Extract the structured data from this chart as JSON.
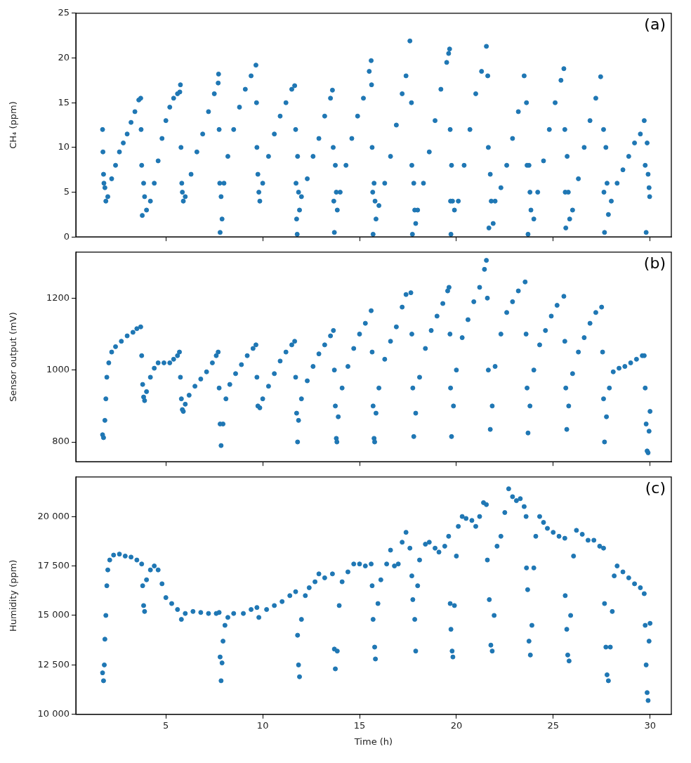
{
  "chart_data": [
    {
      "type": "scatter",
      "ylabel": "CH₄ (ppm)",
      "annotations": [
        "(a)"
      ],
      "marker": "circle",
      "legend": false,
      "tick_labels": "y",
      "xlim": [
        0.35,
        31.1
      ],
      "xticks": [
        5,
        10,
        15,
        20,
        25,
        30
      ],
      "ylim": [
        0,
        25
      ],
      "yticks": [
        0,
        5,
        10,
        15,
        20,
        25
      ],
      "series": [
        {
          "color": "#1f77b4",
          "x": [
            1.73,
            1.75,
            1.78,
            1.8,
            1.85,
            1.9,
            2.0,
            2.2,
            2.4,
            2.6,
            2.8,
            3.0,
            3.2,
            3.4,
            3.6,
            3.7,
            3.72,
            3.75,
            3.78
          ],
          "values": [
            12,
            9.5,
            7,
            6,
            5.5,
            4,
            4.5,
            6.5,
            8,
            9.5,
            10.5,
            11.5,
            12.8,
            14,
            15.3,
            15.5,
            12,
            8,
            2.4
          ]
        },
        {
          "color": "#1f77b4",
          "x": [
            3.85,
            3.9,
            4.0,
            4.2,
            4.4,
            4.6,
            4.8,
            5.0,
            5.2,
            5.4,
            5.6,
            5.72,
            5.75,
            5.78,
            5.82
          ],
          "values": [
            6,
            4.5,
            3,
            4,
            6,
            8.5,
            11,
            13,
            14.5,
            15.5,
            16,
            16.2,
            17,
            10,
            6
          ]
        },
        {
          "color": "#1f77b4",
          "x": [
            5.85,
            5.9,
            6.0,
            6.3,
            6.6,
            6.9,
            7.2,
            7.5,
            7.7,
            7.72,
            7.75,
            7.78,
            7.8
          ],
          "values": [
            5,
            4,
            4.5,
            7,
            9.5,
            11.5,
            14,
            16,
            17.2,
            18.2,
            12,
            6,
            0.5
          ]
        },
        {
          "color": "#1f77b4",
          "x": [
            7.85,
            7.9,
            8.0,
            8.2,
            8.5,
            8.8,
            9.1,
            9.4,
            9.65,
            9.68,
            9.7,
            9.75
          ],
          "values": [
            4.5,
            2,
            6,
            9,
            12,
            14.5,
            16.5,
            18,
            19.2,
            15,
            10,
            7
          ]
        },
        {
          "color": "#1f77b4",
          "x": [
            9.8,
            9.85,
            10.0,
            10.3,
            10.6,
            10.9,
            11.2,
            11.5,
            11.65,
            11.7,
            11.72,
            11.75,
            11.78
          ],
          "values": [
            5,
            4,
            6,
            9,
            11.5,
            13.5,
            15,
            16.5,
            16.9,
            12,
            6,
            2,
            0.3
          ]
        },
        {
          "color": "#1f77b4",
          "x": [
            11.8,
            11.85,
            11.9,
            12.0,
            12.3,
            12.6,
            12.9,
            13.2,
            13.5,
            13.6,
            13.64,
            13.67,
            13.7
          ],
          "values": [
            9,
            5,
            3,
            4.5,
            6.5,
            9,
            11,
            13.5,
            15.5,
            16.4,
            10,
            4,
            0.5
          ]
        },
        {
          "color": "#1f77b4",
          "x": [
            13.75,
            13.8,
            13.85,
            14.0,
            14.3,
            14.6,
            14.9,
            15.2,
            15.5,
            15.6,
            15.62,
            15.65,
            15.68,
            15.7
          ],
          "values": [
            8,
            5,
            3,
            5,
            8,
            11,
            13.5,
            15.5,
            18.5,
            19.7,
            17,
            10,
            5,
            0.3
          ]
        },
        {
          "color": "#1f77b4",
          "x": [
            15.75,
            15.8,
            15.85,
            16.0,
            16.3,
            16.6,
            16.9,
            17.2,
            17.4,
            17.6,
            17.68,
            17.7,
            17.73
          ],
          "values": [
            6,
            4,
            2,
            3.5,
            6,
            9,
            12.5,
            16,
            18,
            21.9,
            15,
            8,
            0.3
          ]
        },
        {
          "color": "#1f77b4",
          "x": [
            17.8,
            17.85,
            17.9,
            18.0,
            18.3,
            18.6,
            18.9,
            19.2,
            19.5,
            19.6,
            19.65,
            19.68,
            19.7,
            19.72
          ],
          "values": [
            6,
            3,
            1.5,
            3,
            6,
            9.5,
            13,
            16.5,
            19.5,
            20.5,
            21,
            12,
            4,
            0.3
          ]
        },
        {
          "color": "#1f77b4",
          "x": [
            19.75,
            19.8,
            19.9,
            20.1,
            20.4,
            20.7,
            21.0,
            21.3,
            21.55,
            21.62,
            21.65,
            21.68
          ],
          "values": [
            8,
            4,
            3,
            4,
            8,
            12,
            16,
            18.5,
            21.3,
            18,
            10,
            1
          ]
        },
        {
          "color": "#1f77b4",
          "x": [
            21.75,
            21.8,
            21.9,
            22.0,
            22.3,
            22.6,
            22.9,
            23.2,
            23.5,
            23.62,
            23.65,
            23.7
          ],
          "values": [
            7,
            4,
            1.5,
            4,
            5.5,
            8,
            11,
            14,
            18,
            15,
            8,
            0.3
          ]
        },
        {
          "color": "#1f77b4",
          "x": [
            23.75,
            23.8,
            23.85,
            24.0,
            24.2,
            24.5,
            24.8,
            25.1,
            25.4,
            25.55,
            25.6,
            25.62,
            25.65
          ],
          "values": [
            8,
            5,
            3,
            2,
            5,
            8.5,
            12,
            15,
            17.5,
            18.8,
            12,
            5,
            1
          ]
        },
        {
          "color": "#1f77b4",
          "x": [
            25.72,
            25.78,
            25.85,
            26.0,
            26.3,
            26.6,
            26.9,
            27.2,
            27.45,
            27.6,
            27.62,
            27.65
          ],
          "values": [
            9,
            5,
            2,
            3,
            6.5,
            10,
            13,
            15.5,
            17.9,
            12,
            5,
            0.5
          ]
        },
        {
          "color": "#1f77b4",
          "x": [
            27.72,
            27.78,
            27.85,
            28.0,
            28.3,
            28.6,
            28.9,
            29.2,
            29.5,
            29.7,
            29.75,
            29.8,
            29.85,
            29.9,
            29.95,
            29.98
          ],
          "values": [
            10,
            6,
            2.5,
            4,
            6,
            7.5,
            9,
            10.5,
            11.5,
            13,
            8,
            0.5,
            10.5,
            7,
            5.5,
            4.5
          ]
        }
      ]
    },
    {
      "type": "scatter",
      "ylabel": "Sensor output (mV)",
      "annotations": [
        "(b)"
      ],
      "marker": "circle",
      "legend": false,
      "tick_labels": "y",
      "xlim": [
        0.35,
        31.1
      ],
      "xticks": [
        5,
        10,
        15,
        20,
        25,
        30
      ],
      "ylim": [
        745,
        1328
      ],
      "yticks": [
        800,
        1000,
        1200
      ],
      "series": [
        {
          "color": "#1f77b4",
          "x": [
            1.73,
            1.78,
            1.85,
            1.9,
            1.95,
            2.05,
            2.2,
            2.4,
            2.7,
            3.0,
            3.3,
            3.5,
            3.7,
            3.75,
            3.8,
            3.85,
            3.9
          ],
          "values": [
            820,
            812,
            860,
            920,
            980,
            1020,
            1050,
            1065,
            1080,
            1095,
            1105,
            1115,
            1120,
            1040,
            960,
            925,
            915
          ]
        },
        {
          "color": "#1f77b4",
          "x": [
            4.0,
            4.2,
            4.4,
            4.6,
            4.9,
            5.2,
            5.4,
            5.6,
            5.7,
            5.75,
            5.8,
            5.85
          ],
          "values": [
            940,
            980,
            1005,
            1020,
            1020,
            1020,
            1030,
            1040,
            1050,
            980,
            920,
            890
          ]
        },
        {
          "color": "#1f77b4",
          "x": [
            5.9,
            6.0,
            6.2,
            6.5,
            6.8,
            7.1,
            7.4,
            7.6,
            7.7,
            7.75,
            7.8,
            7.85
          ],
          "values": [
            885,
            905,
            930,
            955,
            975,
            995,
            1020,
            1040,
            1050,
            950,
            850,
            790
          ]
        },
        {
          "color": "#1f77b4",
          "x": [
            7.95,
            8.1,
            8.3,
            8.6,
            8.9,
            9.2,
            9.5,
            9.65,
            9.7,
            9.75
          ],
          "values": [
            850,
            920,
            960,
            990,
            1015,
            1040,
            1060,
            1070,
            980,
            900
          ]
        },
        {
          "color": "#1f77b4",
          "x": [
            9.85,
            10.0,
            10.3,
            10.6,
            10.9,
            11.2,
            11.5,
            11.65,
            11.7,
            11.75,
            11.8
          ],
          "values": [
            895,
            920,
            955,
            990,
            1025,
            1050,
            1070,
            1080,
            980,
            880,
            800
          ]
        },
        {
          "color": "#1f77b4",
          "x": [
            11.85,
            12.0,
            12.3,
            12.6,
            12.9,
            13.2,
            13.5,
            13.65,
            13.7,
            13.75,
            13.8,
            13.83
          ],
          "values": [
            860,
            920,
            970,
            1010,
            1045,
            1070,
            1095,
            1110,
            1000,
            900,
            810,
            800
          ]
        },
        {
          "color": "#1f77b4",
          "x": [
            13.9,
            14.1,
            14.4,
            14.7,
            15.0,
            15.3,
            15.6,
            15.65,
            15.7,
            15.75,
            15.78
          ],
          "values": [
            870,
            950,
            1010,
            1060,
            1100,
            1130,
            1165,
            1050,
            900,
            810,
            800
          ]
        },
        {
          "color": "#1f77b4",
          "x": [
            15.85,
            16.0,
            16.3,
            16.6,
            16.9,
            17.2,
            17.4,
            17.65,
            17.7,
            17.75,
            17.8
          ],
          "values": [
            880,
            950,
            1030,
            1080,
            1120,
            1175,
            1210,
            1215,
            1100,
            950,
            815
          ]
        },
        {
          "color": "#1f77b4",
          "x": [
            17.9,
            18.1,
            18.4,
            18.7,
            19.0,
            19.3,
            19.55,
            19.62,
            19.67,
            19.7,
            19.75
          ],
          "values": [
            880,
            980,
            1060,
            1110,
            1150,
            1185,
            1220,
            1230,
            1100,
            950,
            815
          ]
        },
        {
          "color": "#1f77b4",
          "x": [
            19.85,
            20.0,
            20.3,
            20.6,
            20.9,
            21.2,
            21.45,
            21.55,
            21.6,
            21.65,
            21.75
          ],
          "values": [
            900,
            1000,
            1090,
            1140,
            1190,
            1230,
            1280,
            1305,
            1200,
            1000,
            835
          ]
        },
        {
          "color": "#1f77b4",
          "x": [
            21.85,
            22.0,
            22.3,
            22.6,
            22.9,
            23.2,
            23.55,
            23.6,
            23.65,
            23.7
          ],
          "values": [
            900,
            1010,
            1100,
            1160,
            1190,
            1220,
            1245,
            1100,
            950,
            825
          ]
        },
        {
          "color": "#1f77b4",
          "x": [
            23.8,
            24.0,
            24.3,
            24.6,
            24.9,
            25.2,
            25.55,
            25.6,
            25.65,
            25.7
          ],
          "values": [
            900,
            1000,
            1070,
            1110,
            1150,
            1180,
            1205,
            1080,
            950,
            835
          ]
        },
        {
          "color": "#1f77b4",
          "x": [
            25.8,
            26.0,
            26.3,
            26.6,
            26.9,
            27.2,
            27.5,
            27.55,
            27.6,
            27.65
          ],
          "values": [
            900,
            990,
            1050,
            1090,
            1130,
            1160,
            1175,
            1050,
            920,
            800
          ]
        },
        {
          "color": "#1f77b4",
          "x": [
            27.75,
            27.9,
            28.1,
            28.4,
            28.7,
            29.0,
            29.3,
            29.6,
            29.7,
            29.75,
            29.8,
            29.85,
            29.9,
            29.95,
            30.0
          ],
          "values": [
            870,
            950,
            995,
            1005,
            1010,
            1020,
            1030,
            1040,
            1040,
            950,
            850,
            775,
            770,
            830,
            885
          ]
        }
      ]
    },
    {
      "type": "scatter",
      "xlabel": "Time (h)",
      "ylabel": "Humidity (ppm)",
      "annotations": [
        "(c)"
      ],
      "marker": "circle",
      "legend": false,
      "xlim": [
        0.35,
        31.1
      ],
      "xticks": [
        5,
        10,
        15,
        20,
        25,
        30
      ],
      "ylim": [
        10000,
        22000
      ],
      "yticks": [
        {
          "value": 10000,
          "label": "10 000"
        },
        {
          "value": 12500,
          "label": "12 500"
        },
        {
          "value": 15000,
          "label": "15 000"
        },
        {
          "value": 17500,
          "label": "17 500"
        },
        {
          "value": 20000,
          "label": "20 000"
        }
      ],
      "series": [
        {
          "color": "#1f77b4",
          "x": [
            1.73,
            1.78,
            1.82,
            1.85,
            1.9,
            1.95,
            2.0,
            2.1,
            2.3,
            2.6,
            2.9,
            3.2,
            3.5,
            3.75
          ],
          "values": [
            12100,
            11700,
            12500,
            13800,
            15000,
            16500,
            17300,
            17800,
            18050,
            18100,
            18000,
            17950,
            17800,
            17600
          ]
        },
        {
          "color": "#1f77b4",
          "x": [
            3.8,
            3.85,
            3.9,
            4.0,
            4.2,
            4.4,
            4.6,
            4.8,
            5.0,
            5.3,
            5.6,
            5.8,
            6.0,
            6.4,
            6.8,
            7.2,
            7.6,
            7.75
          ],
          "values": [
            16500,
            15500,
            15200,
            16800,
            17300,
            17500,
            17300,
            16600,
            15900,
            15600,
            15300,
            14800,
            15100,
            15200,
            15150,
            15100,
            15100,
            15150
          ]
        },
        {
          "color": "#1f77b4",
          "x": [
            7.8,
            7.85,
            7.9,
            7.95,
            8.05,
            8.2,
            8.5,
            9.0,
            9.4,
            9.7,
            9.8,
            10.2,
            10.6,
            11.0,
            11.4,
            11.7
          ],
          "values": [
            12900,
            11700,
            12600,
            13700,
            14500,
            14900,
            15100,
            15100,
            15300,
            15400,
            14900,
            15300,
            15500,
            15700,
            16000,
            16200
          ]
        },
        {
          "color": "#1f77b4",
          "x": [
            11.8,
            11.85,
            11.9,
            12.0,
            12.2,
            12.4,
            12.7,
            12.9,
            13.2,
            13.6
          ],
          "values": [
            14000,
            12500,
            11900,
            14800,
            16000,
            16400,
            16700,
            17100,
            16900,
            17100
          ]
        },
        {
          "color": "#1f77b4",
          "x": [
            13.7,
            13.75,
            13.85,
            13.95,
            14.1,
            14.4,
            14.7,
            15.0,
            15.3,
            15.6
          ],
          "values": [
            13300,
            12300,
            13200,
            15500,
            16700,
            17200,
            17600,
            17600,
            17500,
            17600
          ]
        },
        {
          "color": "#1f77b4",
          "x": [
            15.65,
            15.7,
            15.78,
            15.82,
            15.95,
            16.1,
            16.4,
            16.6,
            16.8,
            17.0,
            17.2,
            17.4,
            17.6
          ],
          "values": [
            16500,
            14800,
            13400,
            12800,
            15600,
            16800,
            17600,
            18300,
            17500,
            17600,
            18700,
            19200,
            18400
          ]
        },
        {
          "color": "#1f77b4",
          "x": [
            17.7,
            17.75,
            17.85,
            17.9,
            18.0,
            18.1,
            18.4,
            18.6,
            18.9,
            19.1,
            19.4,
            19.6
          ],
          "values": [
            17000,
            15800,
            14800,
            13200,
            16500,
            17800,
            18600,
            18700,
            18400,
            18200,
            18500,
            19000
          ]
        },
        {
          "color": "#1f77b4",
          "x": [
            19.68,
            19.72,
            19.78,
            19.82,
            19.9,
            20.0,
            20.1,
            20.3,
            20.5,
            20.8,
            21.0,
            21.2,
            21.4,
            21.55
          ],
          "values": [
            15600,
            14300,
            13200,
            12900,
            15500,
            18000,
            19500,
            20000,
            19900,
            19800,
            19500,
            20000,
            20700,
            20600
          ]
        },
        {
          "color": "#1f77b4",
          "x": [
            21.6,
            21.7,
            21.78,
            21.85,
            21.95,
            22.1,
            22.3,
            22.5,
            22.7,
            22.9,
            23.1,
            23.3,
            23.5,
            23.6
          ],
          "values": [
            17800,
            15800,
            13500,
            13200,
            15000,
            18500,
            19000,
            20200,
            21400,
            21000,
            20800,
            20900,
            20500,
            20000
          ]
        },
        {
          "color": "#1f77b4",
          "x": [
            23.62,
            23.68,
            23.75,
            23.82,
            23.9,
            24.0,
            24.1,
            24.3,
            24.5,
            24.7,
            25.0,
            25.3,
            25.6
          ],
          "values": [
            17400,
            16300,
            13700,
            13000,
            14500,
            17400,
            19000,
            20000,
            19700,
            19400,
            19200,
            19000,
            18900
          ]
        },
        {
          "color": "#1f77b4",
          "x": [
            25.62,
            25.7,
            25.75,
            25.82,
            25.9,
            26.05,
            26.2,
            26.5,
            26.8,
            27.1,
            27.4,
            27.6
          ],
          "values": [
            16000,
            14300,
            13000,
            12700,
            15000,
            18000,
            19300,
            19100,
            18800,
            18800,
            18500,
            18400
          ]
        },
        {
          "color": "#1f77b4",
          "x": [
            27.65,
            27.72,
            27.78,
            27.85,
            27.95,
            28.05,
            28.15,
            28.3,
            28.6,
            28.9,
            29.2,
            29.5,
            29.7,
            29.75,
            29.8,
            29.85,
            29.9,
            29.95,
            30.0
          ],
          "values": [
            15600,
            13400,
            12000,
            11700,
            13400,
            15200,
            17000,
            17500,
            17200,
            16900,
            16600,
            16400,
            16100,
            14500,
            12500,
            11100,
            10700,
            13700,
            14600
          ]
        }
      ]
    }
  ]
}
